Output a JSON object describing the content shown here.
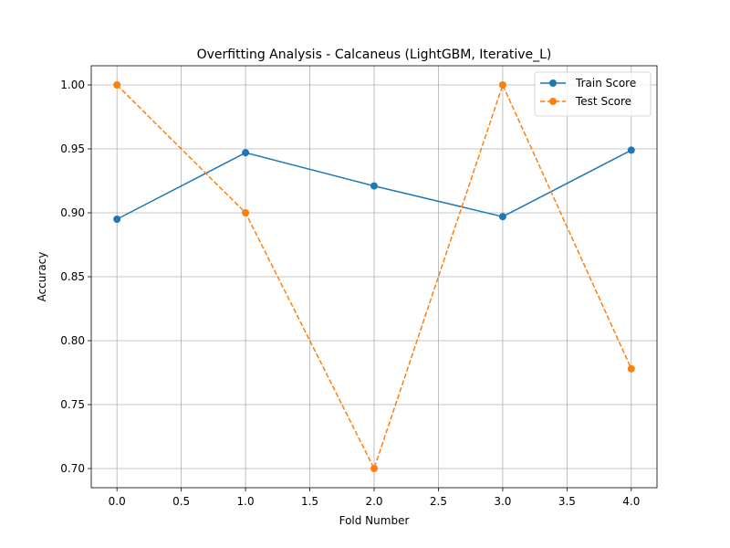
{
  "chart_data": {
    "type": "line",
    "title": "Overfitting Analysis - Calcaneus (LightGBM, Iterative_L)",
    "xlabel": "Fold Number",
    "ylabel": "Accuracy",
    "xlim": [
      -0.2,
      4.2
    ],
    "ylim": [
      0.685,
      1.015
    ],
    "xticks": [
      0.0,
      0.5,
      1.0,
      1.5,
      2.0,
      2.5,
      3.0,
      3.5,
      4.0
    ],
    "xtick_labels": [
      "0.0",
      "0.5",
      "1.0",
      "1.5",
      "2.0",
      "2.5",
      "3.0",
      "3.5",
      "4.0"
    ],
    "yticks": [
      0.7,
      0.75,
      0.8,
      0.85,
      0.9,
      0.95,
      1.0
    ],
    "ytick_labels": [
      "0.70",
      "0.75",
      "0.80",
      "0.85",
      "0.90",
      "0.95",
      "1.00"
    ],
    "grid": true,
    "legend_position": "top-right",
    "x": [
      0,
      1,
      2,
      3,
      4
    ],
    "series": [
      {
        "name": "Train Score",
        "values": [
          0.895,
          0.947,
          0.921,
          0.897,
          0.949
        ],
        "color": "#1f77b4",
        "line_style": "solid",
        "marker": "circle"
      },
      {
        "name": "Test Score",
        "values": [
          1.0,
          0.9,
          0.7,
          1.0,
          0.778
        ],
        "color": "#ff7f0e",
        "line_style": "dashed",
        "marker": "circle"
      }
    ]
  }
}
